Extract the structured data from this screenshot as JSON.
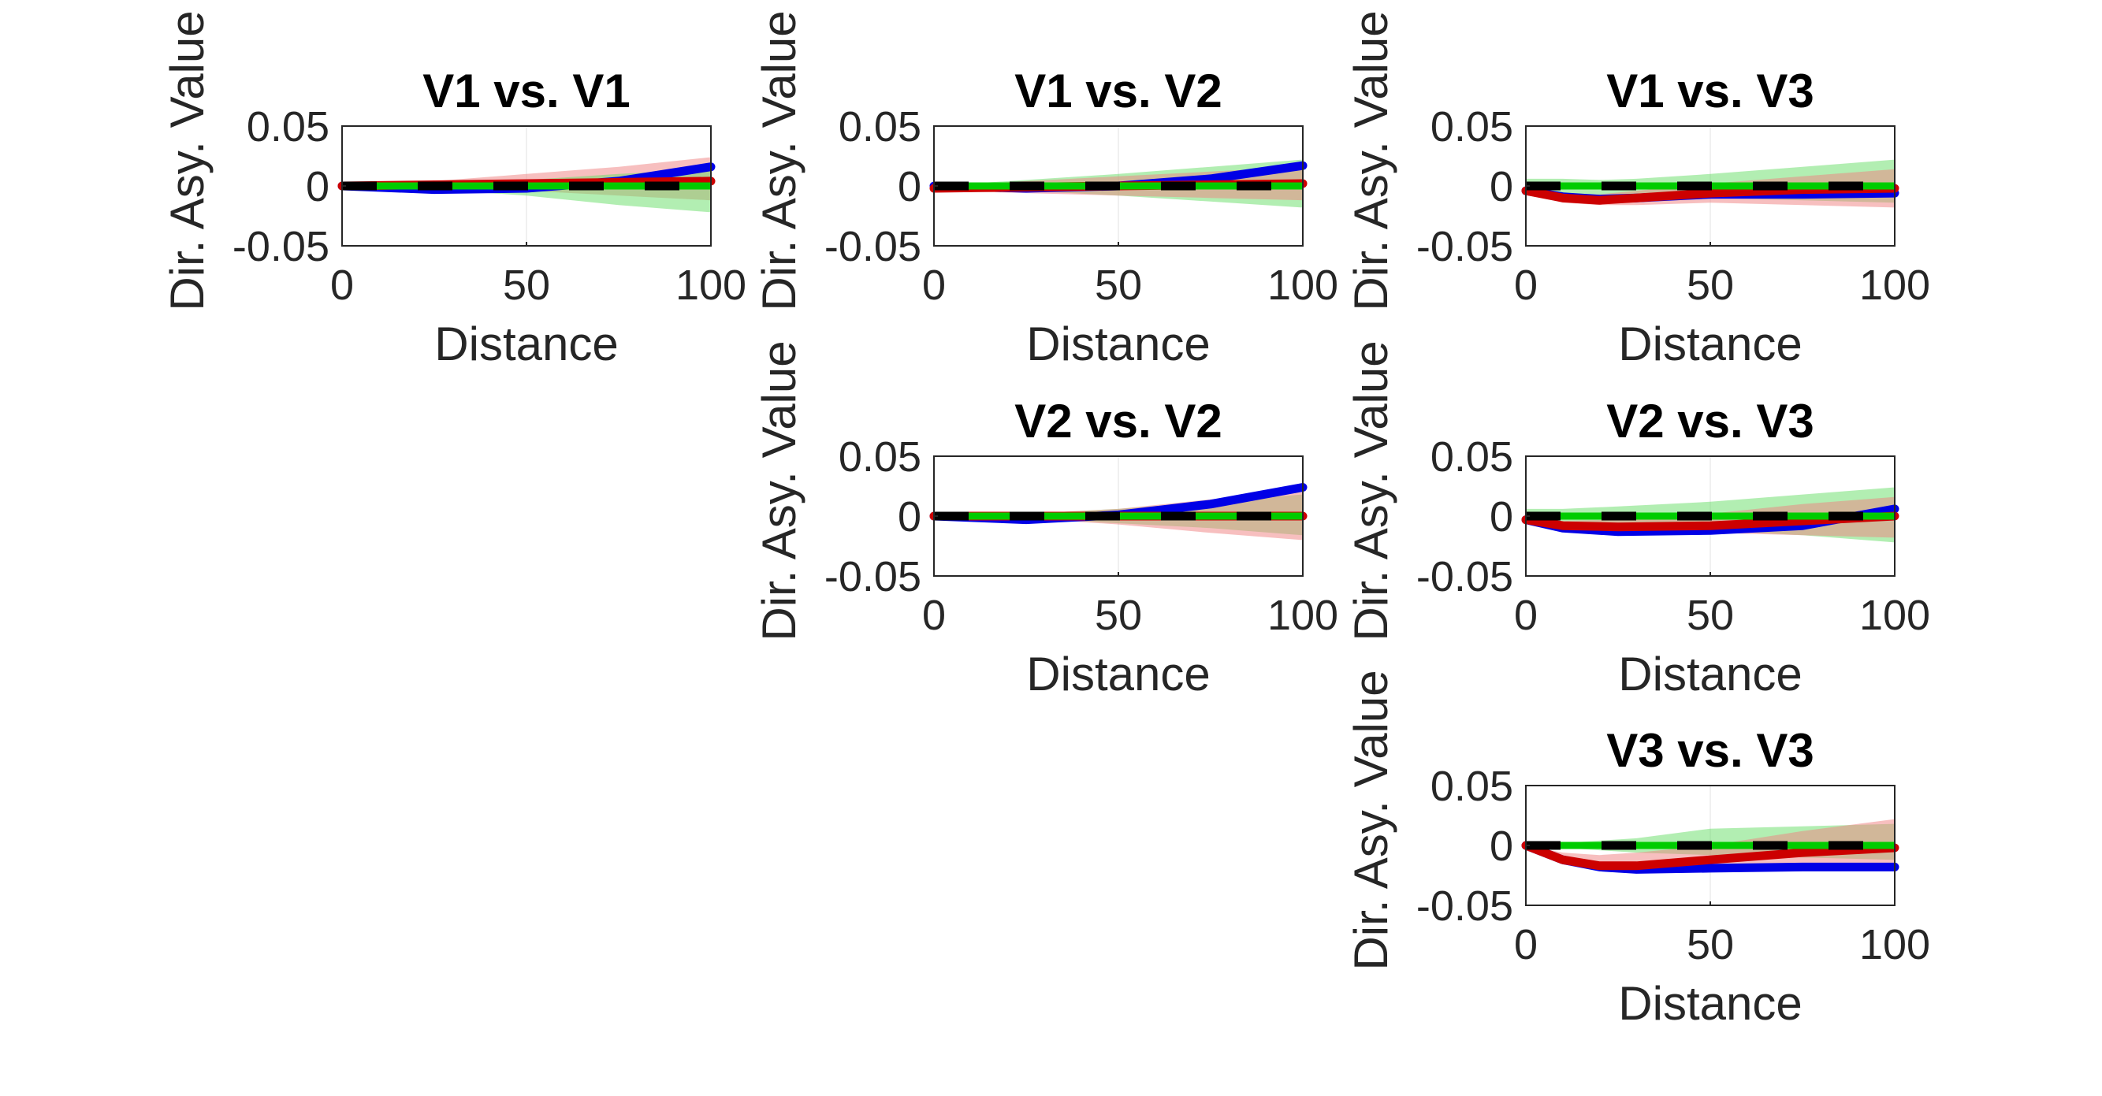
{
  "figure": {
    "background": "#ffffff",
    "colors": {
      "blue_band": "#0000e6",
      "red_band": "#cc0000",
      "green_band": "#00cc00",
      "red_shade": "#f08080",
      "green_shade": "#66dd66",
      "overlap_shade": "#a08a55",
      "zero_line_dark": "#000000",
      "axis": "#262626",
      "grid": "#ebebeb"
    }
  },
  "chart_data": [
    {
      "type": "line",
      "title": "V1 vs. V1",
      "xlabel": "Distance",
      "ylabel": "Dir. Asy. Value",
      "xlim": [
        0,
        100
      ],
      "ylim": [
        -0.05,
        0.05
      ],
      "xticks": [
        "0",
        "50",
        "100"
      ],
      "yticks": [
        "0.05",
        "0",
        "-0.05"
      ],
      "grid": true,
      "x": [
        0,
        25,
        50,
        75,
        100
      ],
      "series": [
        {
          "color": "blue",
          "values": [
            0,
            -0.003,
            -0.002,
            0.004,
            0.016
          ]
        },
        {
          "color": "red",
          "values": [
            0,
            0.001,
            0.002,
            0.003,
            0.004
          ]
        },
        {
          "color": "green",
          "values": [
            0,
            0,
            0,
            0,
            0
          ]
        }
      ],
      "bands": [
        {
          "color": "red",
          "upper": [
            0,
            0.004,
            0.01,
            0.016,
            0.024
          ],
          "lower": [
            0,
            -0.002,
            -0.004,
            -0.008,
            -0.012
          ]
        },
        {
          "color": "green",
          "upper": [
            0,
            0.002,
            0.005,
            0.01,
            0.014
          ],
          "lower": [
            0,
            -0.003,
            -0.008,
            -0.016,
            -0.022
          ]
        }
      ]
    },
    {
      "type": "line",
      "title": "V1 vs. V2",
      "xlabel": "Distance",
      "ylabel": "Dir. Asy. Value",
      "xlim": [
        0,
        100
      ],
      "ylim": [
        -0.05,
        0.05
      ],
      "xticks": [
        "0",
        "50",
        "100"
      ],
      "yticks": [
        "0.05",
        "0",
        "-0.05"
      ],
      "grid": true,
      "x": [
        0,
        25,
        50,
        75,
        100
      ],
      "series": [
        {
          "color": "blue",
          "values": [
            0,
            -0.002,
            0,
            0.006,
            0.017
          ]
        },
        {
          "color": "red",
          "values": [
            -0.002,
            -0.001,
            0,
            0.001,
            0.002
          ]
        },
        {
          "color": "green",
          "values": [
            0,
            0,
            0,
            0,
            0
          ]
        }
      ],
      "bands": [
        {
          "color": "green",
          "upper": [
            0,
            0.005,
            0.01,
            0.016,
            0.022
          ],
          "lower": [
            0,
            -0.004,
            -0.008,
            -0.013,
            -0.018
          ]
        },
        {
          "color": "red",
          "upper": [
            0,
            0.004,
            0.008,
            0.012,
            0.016
          ],
          "lower": [
            -0.004,
            -0.006,
            -0.008,
            -0.01,
            -0.012
          ]
        }
      ]
    },
    {
      "type": "line",
      "title": "V1 vs. V3",
      "xlabel": "Distance",
      "ylabel": "Dir. Asy. Value",
      "xlim": [
        0,
        100
      ],
      "ylim": [
        -0.05,
        0.05
      ],
      "xticks": [
        "0",
        "50",
        "100"
      ],
      "yticks": [
        "0.05",
        "0",
        "-0.05"
      ],
      "grid": true,
      "x": [
        0,
        10,
        20,
        30,
        50,
        75,
        100
      ],
      "series": [
        {
          "color": "blue",
          "values": [
            -0.004,
            -0.009,
            -0.011,
            -0.01,
            -0.007,
            -0.007,
            -0.006
          ]
        },
        {
          "color": "red",
          "values": [
            -0.004,
            -0.01,
            -0.012,
            -0.01,
            -0.006,
            -0.003,
            -0.002
          ]
        },
        {
          "color": "green",
          "values": [
            0,
            0,
            0,
            0,
            0,
            0,
            0
          ]
        }
      ],
      "bands": [
        {
          "color": "green",
          "upper": [
            0.006,
            0.006,
            0.005,
            0.006,
            0.01,
            0.016,
            0.022
          ],
          "lower": [
            -0.004,
            -0.006,
            -0.008,
            -0.009,
            -0.01,
            -0.012,
            -0.014
          ]
        },
        {
          "color": "red",
          "upper": [
            -0.002,
            -0.006,
            -0.007,
            -0.004,
            0.002,
            0.008,
            0.014
          ],
          "lower": [
            -0.006,
            -0.014,
            -0.016,
            -0.016,
            -0.014,
            -0.016,
            -0.018
          ]
        }
      ]
    },
    {
      "type": "line",
      "title": "V2 vs. V2",
      "xlabel": "Distance",
      "ylabel": "Dir. Asy. Value",
      "xlim": [
        0,
        100
      ],
      "ylim": [
        -0.05,
        0.05
      ],
      "xticks": [
        "0",
        "50",
        "100"
      ],
      "yticks": [
        "0.05",
        "0",
        "-0.05"
      ],
      "grid": true,
      "x": [
        0,
        25,
        50,
        75,
        100
      ],
      "series": [
        {
          "color": "blue",
          "values": [
            0,
            -0.003,
            0.001,
            0.01,
            0.024
          ]
        },
        {
          "color": "red",
          "values": [
            0,
            0,
            0,
            0,
            0
          ]
        },
        {
          "color": "green",
          "values": [
            0,
            0,
            0,
            0,
            0
          ]
        }
      ],
      "bands": [
        {
          "color": "green",
          "upper": [
            0,
            0.002,
            0.006,
            0.012,
            0.018
          ],
          "lower": [
            0,
            -0.002,
            -0.006,
            -0.01,
            -0.016
          ]
        },
        {
          "color": "red",
          "upper": [
            0,
            0.002,
            0.006,
            0.014,
            0.02
          ],
          "lower": [
            0,
            -0.002,
            -0.007,
            -0.014,
            -0.02
          ]
        }
      ]
    },
    {
      "type": "line",
      "title": "V2 vs. V3",
      "xlabel": "Distance",
      "ylabel": "Dir. Asy. Value",
      "xlim": [
        0,
        100
      ],
      "ylim": [
        -0.05,
        0.05
      ],
      "xticks": [
        "0",
        "50",
        "100"
      ],
      "yticks": [
        "0.05",
        "0",
        "-0.05"
      ],
      "grid": true,
      "x": [
        0,
        10,
        25,
        50,
        75,
        100
      ],
      "series": [
        {
          "color": "blue",
          "values": [
            -0.003,
            -0.01,
            -0.013,
            -0.012,
            -0.008,
            0.006
          ]
        },
        {
          "color": "red",
          "values": [
            -0.003,
            -0.008,
            -0.009,
            -0.008,
            -0.004,
            0
          ]
        },
        {
          "color": "green",
          "values": [
            0,
            0,
            0,
            0,
            0,
            0
          ]
        }
      ],
      "bands": [
        {
          "color": "green",
          "upper": [
            0.006,
            0.006,
            0.008,
            0.012,
            0.018,
            0.024
          ],
          "lower": [
            -0.006,
            -0.008,
            -0.01,
            -0.012,
            -0.016,
            -0.022
          ]
        },
        {
          "color": "red",
          "upper": [
            0,
            -0.004,
            -0.003,
            0.002,
            0.01,
            0.016
          ],
          "lower": [
            -0.004,
            -0.012,
            -0.014,
            -0.014,
            -0.016,
            -0.018
          ]
        }
      ]
    },
    {
      "type": "line",
      "title": "V3 vs. V3",
      "xlabel": "Distance",
      "ylabel": "Dir. Asy. Value",
      "xlim": [
        0,
        100
      ],
      "ylim": [
        -0.05,
        0.05
      ],
      "xticks": [
        "0",
        "50",
        "100"
      ],
      "yticks": [
        "0.05",
        "0",
        "-0.05"
      ],
      "grid": true,
      "x": [
        0,
        10,
        20,
        30,
        50,
        75,
        100
      ],
      "series": [
        {
          "color": "blue",
          "values": [
            0,
            -0.012,
            -0.018,
            -0.02,
            -0.019,
            -0.018,
            -0.018
          ]
        },
        {
          "color": "red",
          "values": [
            0,
            -0.012,
            -0.017,
            -0.017,
            -0.012,
            -0.006,
            -0.002
          ]
        },
        {
          "color": "green",
          "values": [
            0,
            0,
            0,
            0,
            0,
            0,
            0
          ]
        }
      ],
      "bands": [
        {
          "color": "green",
          "upper": [
            0,
            0.002,
            0.004,
            0.006,
            0.014,
            0.016,
            0.018
          ],
          "lower": [
            0,
            -0.002,
            -0.004,
            -0.006,
            -0.008,
            -0.01,
            -0.012
          ]
        },
        {
          "color": "red",
          "upper": [
            0,
            -0.006,
            -0.008,
            -0.006,
            0,
            0.012,
            0.022
          ],
          "lower": [
            0,
            -0.016,
            -0.02,
            -0.022,
            -0.02,
            -0.02,
            -0.02
          ]
        }
      ]
    }
  ]
}
